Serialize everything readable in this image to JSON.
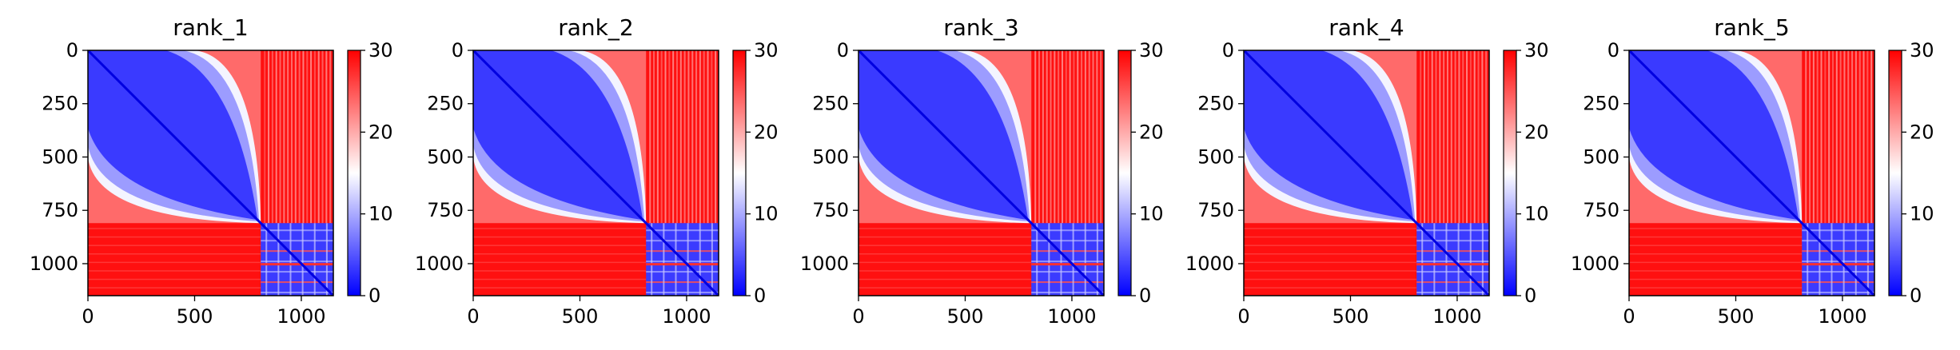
{
  "chart_data": [
    {
      "type": "heatmap",
      "title": "rank_1",
      "x_ticks": [
        "0",
        "500",
        "1000"
      ],
      "y_ticks": [
        "0",
        "250",
        "500",
        "750",
        "1000"
      ],
      "xlim": [
        0,
        1150
      ],
      "ylim": [
        1150,
        0
      ],
      "block_boundary": 810,
      "colorbar": {
        "min": 0,
        "max": 30,
        "ticks": [
          "0",
          "10",
          "20",
          "30"
        ],
        "colormap": "bwr"
      }
    },
    {
      "type": "heatmap",
      "title": "rank_2",
      "x_ticks": [
        "0",
        "500",
        "1000"
      ],
      "y_ticks": [
        "0",
        "250",
        "500",
        "750",
        "1000"
      ],
      "xlim": [
        0,
        1150
      ],
      "ylim": [
        1150,
        0
      ],
      "block_boundary": 810,
      "colorbar": {
        "min": 0,
        "max": 30,
        "ticks": [
          "0",
          "10",
          "20",
          "30"
        ],
        "colormap": "bwr"
      }
    },
    {
      "type": "heatmap",
      "title": "rank_3",
      "x_ticks": [
        "0",
        "500",
        "1000"
      ],
      "y_ticks": [
        "0",
        "250",
        "500",
        "750",
        "1000"
      ],
      "xlim": [
        0,
        1150
      ],
      "ylim": [
        1150,
        0
      ],
      "block_boundary": 810,
      "colorbar": {
        "min": 0,
        "max": 30,
        "ticks": [
          "0",
          "10",
          "20",
          "30"
        ],
        "colormap": "bwr"
      }
    },
    {
      "type": "heatmap",
      "title": "rank_4",
      "x_ticks": [
        "0",
        "500",
        "1000"
      ],
      "y_ticks": [
        "0",
        "250",
        "500",
        "750",
        "1000"
      ],
      "xlim": [
        0,
        1150
      ],
      "ylim": [
        1150,
        0
      ],
      "block_boundary": 810,
      "colorbar": {
        "min": 0,
        "max": 30,
        "ticks": [
          "0",
          "10",
          "20",
          "30"
        ],
        "colormap": "bwr"
      }
    },
    {
      "type": "heatmap",
      "title": "rank_5",
      "x_ticks": [
        "0",
        "500",
        "1000"
      ],
      "y_ticks": [
        "0",
        "250",
        "500",
        "750",
        "1000"
      ],
      "xlim": [
        0,
        1150
      ],
      "ylim": [
        1150,
        0
      ],
      "block_boundary": 810,
      "colorbar": {
        "min": 0,
        "max": 30,
        "ticks": [
          "0",
          "10",
          "20",
          "30"
        ],
        "colormap": "bwr"
      }
    }
  ],
  "colors": {
    "low": "#0000ff",
    "mid": "#ffffff",
    "high": "#ff0000"
  }
}
